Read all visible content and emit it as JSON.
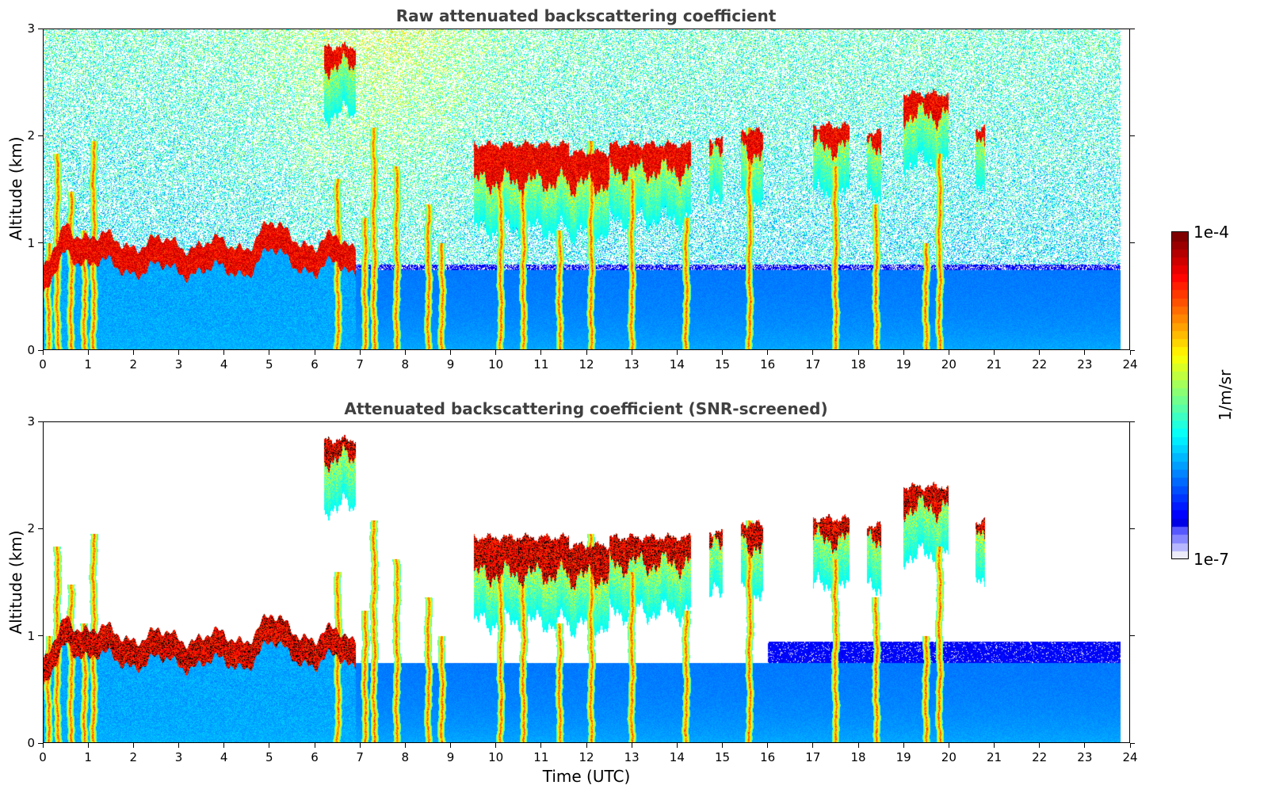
{
  "chart_data": [
    {
      "type": "heatmap",
      "title": "Raw attenuated backscattering coefficient",
      "xlabel": "",
      "ylabel": "Altitude (km)",
      "xlim": [
        0,
        24
      ],
      "ylim": [
        0,
        3
      ],
      "x_ticks": [
        "0",
        "1",
        "2",
        "3",
        "4",
        "5",
        "6",
        "7",
        "8",
        "9",
        "10",
        "11",
        "12",
        "13",
        "14",
        "15",
        "16",
        "17",
        "18",
        "19",
        "20",
        "21",
        "22",
        "23",
        "24"
      ],
      "y_ticks": [
        "0",
        "1",
        "2",
        "3"
      ],
      "screened": false
    },
    {
      "type": "heatmap",
      "title": "Attenuated backscattering coefficient (SNR-screened)",
      "xlabel": "Time (UTC)",
      "ylabel": "Altitude (km)",
      "xlim": [
        0,
        24
      ],
      "ylim": [
        0,
        3
      ],
      "x_ticks": [
        "0",
        "1",
        "2",
        "3",
        "4",
        "5",
        "6",
        "7",
        "8",
        "9",
        "10",
        "11",
        "12",
        "13",
        "14",
        "15",
        "16",
        "17",
        "18",
        "19",
        "20",
        "21",
        "22",
        "23",
        "24"
      ],
      "y_ticks": [
        "0",
        "1",
        "2",
        "3"
      ],
      "screened": true
    }
  ],
  "colorbar": {
    "label": "1/m/sr",
    "max_label": "1e-4",
    "min_label": "1e-7",
    "scale": "log",
    "colormap": "jet"
  },
  "data_extent_hours": 23.8,
  "features": {
    "boundary_layer": [
      [
        0,
        0.7
      ],
      [
        0.5,
        1.2
      ],
      [
        1,
        1.05
      ],
      [
        2,
        1.0
      ],
      [
        3,
        1.0
      ],
      [
        4,
        0.98
      ],
      [
        4.5,
        1.0
      ],
      [
        5,
        1.15
      ],
      [
        5.5,
        1.1
      ],
      [
        6,
        0.95
      ],
      [
        6.5,
        1.05
      ],
      [
        6.8,
        1.0
      ]
    ],
    "cloud_segments": [
      {
        "x0": 6.2,
        "x1": 6.9,
        "alt": 2.75,
        "thick": 0.18
      },
      {
        "x0": 9.5,
        "x1": 11.6,
        "alt": 1.75,
        "thick": 0.35
      },
      {
        "x0": 11.6,
        "x1": 12.5,
        "alt": 1.7,
        "thick": 0.3
      },
      {
        "x0": 12.5,
        "x1": 14.3,
        "alt": 1.8,
        "thick": 0.25
      },
      {
        "x0": 14.7,
        "x1": 15.0,
        "alt": 1.9,
        "thick": 0.15
      },
      {
        "x0": 15.4,
        "x1": 15.9,
        "alt": 1.95,
        "thick": 0.2
      },
      {
        "x0": 17.0,
        "x1": 17.8,
        "alt": 2.0,
        "thick": 0.2
      },
      {
        "x0": 18.2,
        "x1": 18.5,
        "alt": 1.95,
        "thick": 0.18
      },
      {
        "x0": 19.0,
        "x1": 20.0,
        "alt": 2.3,
        "thick": 0.2
      },
      {
        "x0": 20.6,
        "x1": 20.8,
        "alt": 2.02,
        "thick": 0.1
      }
    ],
    "columns": [
      0.1,
      0.3,
      0.6,
      0.9,
      1.1,
      6.5,
      7.1,
      7.3,
      7.8,
      8.5,
      8.8,
      10.1,
      10.6,
      11.4,
      12.1,
      13.0,
      14.2,
      15.6,
      17.5,
      18.4,
      19.5,
      19.8
    ]
  }
}
